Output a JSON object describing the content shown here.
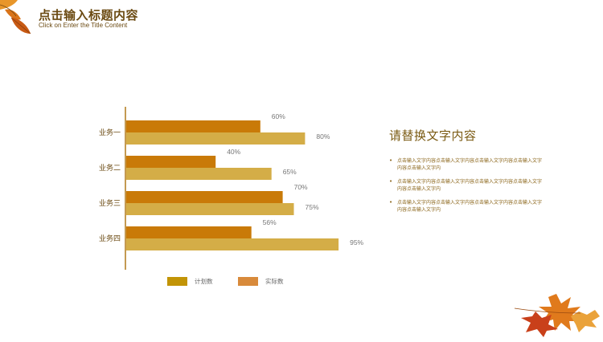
{
  "header": {
    "title": "点击输入标题内容",
    "subtitle": "Click on Enter the Title Content"
  },
  "side_panel": {
    "title": "请替换文字内容",
    "bullets": [
      "点击输入文字内容点击输入文字内容点击输入文字内容点击输入文字内容点击输入文字内",
      "点击输入文字内容点击输入文字内容点击输入文字内容点击输入文字内容点击输入文字内",
      "点击输入文字内容点击输入文字内容点击输入文字内容点击输入文字内容点击输入文字内"
    ]
  },
  "colors": {
    "series_a": "#c97a08",
    "series_b": "#d4ad47",
    "legend_a": "#c29406",
    "legend_b": "#d88a3b",
    "axis": "#b07818",
    "category_text": "#6b4a12",
    "value_text": "#777777"
  },
  "chart_data": {
    "type": "bar",
    "orientation": "horizontal",
    "categories": [
      "业务一",
      "业务二",
      "业务三",
      "业务四"
    ],
    "series": [
      {
        "values": [
          60,
          40,
          70,
          56
        ],
        "labels": [
          "60%",
          "40%",
          "70%",
          "56%"
        ]
      },
      {
        "values": [
          80,
          65,
          75,
          95
        ],
        "labels": [
          "80%",
          "65%",
          "75%",
          "95%"
        ]
      }
    ],
    "legend": [
      "计划数",
      "实际数"
    ],
    "legend_position": "bottom",
    "xlim": [
      0,
      100
    ],
    "grid": false
  }
}
